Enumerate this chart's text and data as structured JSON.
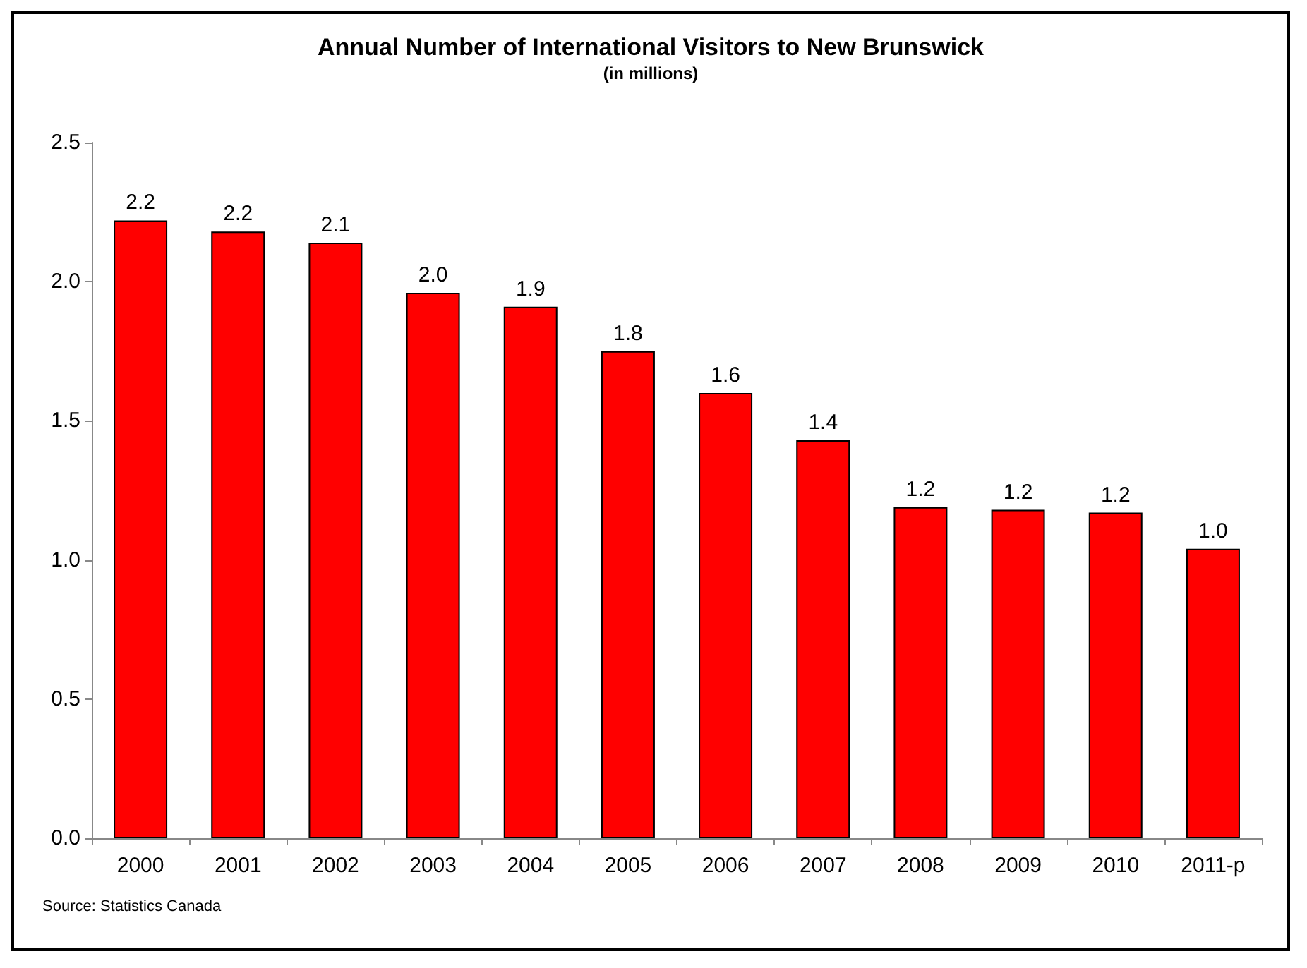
{
  "chart_data": {
    "type": "bar",
    "title": "Annual Number of International Visitors to New Brunswick",
    "subtitle": "(in millions)",
    "categories": [
      "2000",
      "2001",
      "2002",
      "2003",
      "2004",
      "2005",
      "2006",
      "2007",
      "2008",
      "2009",
      "2010",
      "2011-p"
    ],
    "values": [
      2.22,
      2.18,
      2.14,
      1.96,
      1.91,
      1.75,
      1.6,
      1.43,
      1.19,
      1.18,
      1.17,
      1.04
    ],
    "value_labels": [
      "2.2",
      "2.2",
      "2.1",
      "2.0",
      "1.9",
      "1.8",
      "1.6",
      "1.4",
      "1.2",
      "1.2",
      "1.2",
      "1.0"
    ],
    "color": "#ff0000",
    "ylim": [
      0,
      2.5
    ],
    "yticks": [
      {
        "value": 0,
        "label": "0.0"
      },
      {
        "value": 0.5,
        "label": "0.5"
      },
      {
        "value": 1,
        "label": "1.0"
      },
      {
        "value": 1.5,
        "label": "1.5"
      },
      {
        "value": 2,
        "label": "2.0"
      },
      {
        "value": 2.5,
        "label": "2.5"
      }
    ],
    "grid": false,
    "annotations": [
      "Source: Statistics Canada"
    ]
  }
}
